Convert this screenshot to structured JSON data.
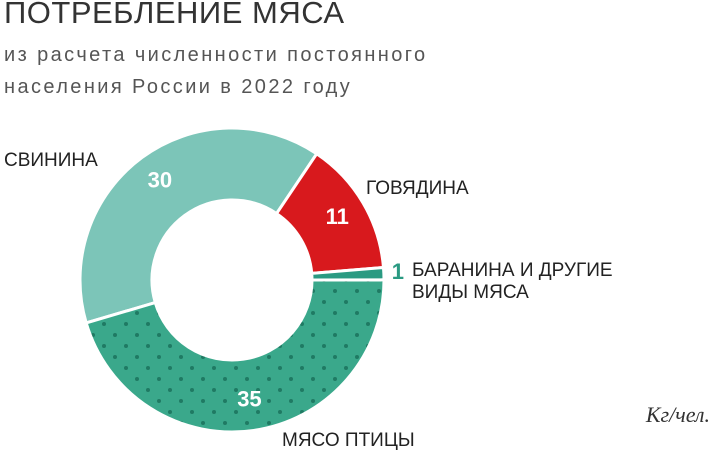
{
  "chart_data": {
    "type": "donut",
    "title": "ПОТРЕБЛЕНИЕ МЯСА",
    "subtitle": [
      "из расчета численности постоянного",
      "населения России в 2022 году"
    ],
    "unit": "Кг/чел.",
    "categories": [
      "СВИНИНА",
      "ГОВЯДИНА",
      "БАРАНИНА И ДРУГИЕ ВИДЫ МЯСА",
      "МЯСО ПТИЦЫ"
    ],
    "values": [
      30,
      11,
      1,
      35
    ],
    "colors": [
      "#7cc5b8",
      "#d8191d",
      "#2a9a82",
      "#3aa88b"
    ]
  }
}
